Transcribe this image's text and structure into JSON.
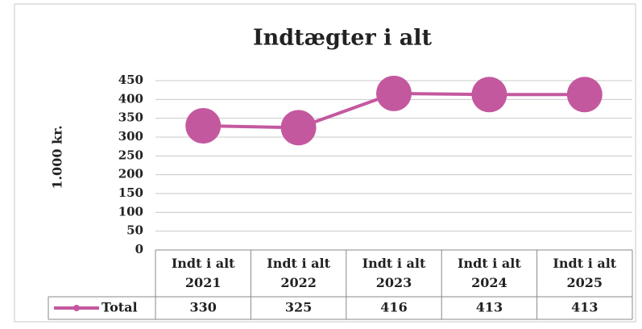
{
  "chart_data": {
    "type": "line",
    "title": "Indtægter i alt",
    "y_label": "1.000 kr.",
    "categories": [
      "Indt i alt 2021",
      "Indt i alt 2022",
      "Indt i alt 2023",
      "Indt i alt 2024",
      "Indt i alt 2025"
    ],
    "series": [
      {
        "name": "Total",
        "color": "#c4589f",
        "values": [
          330,
          325,
          416,
          413,
          413
        ]
      }
    ],
    "ylim": [
      0,
      450
    ],
    "yticks": [
      0,
      50,
      100,
      150,
      200,
      250,
      300,
      350,
      400,
      450
    ],
    "grid": true
  }
}
